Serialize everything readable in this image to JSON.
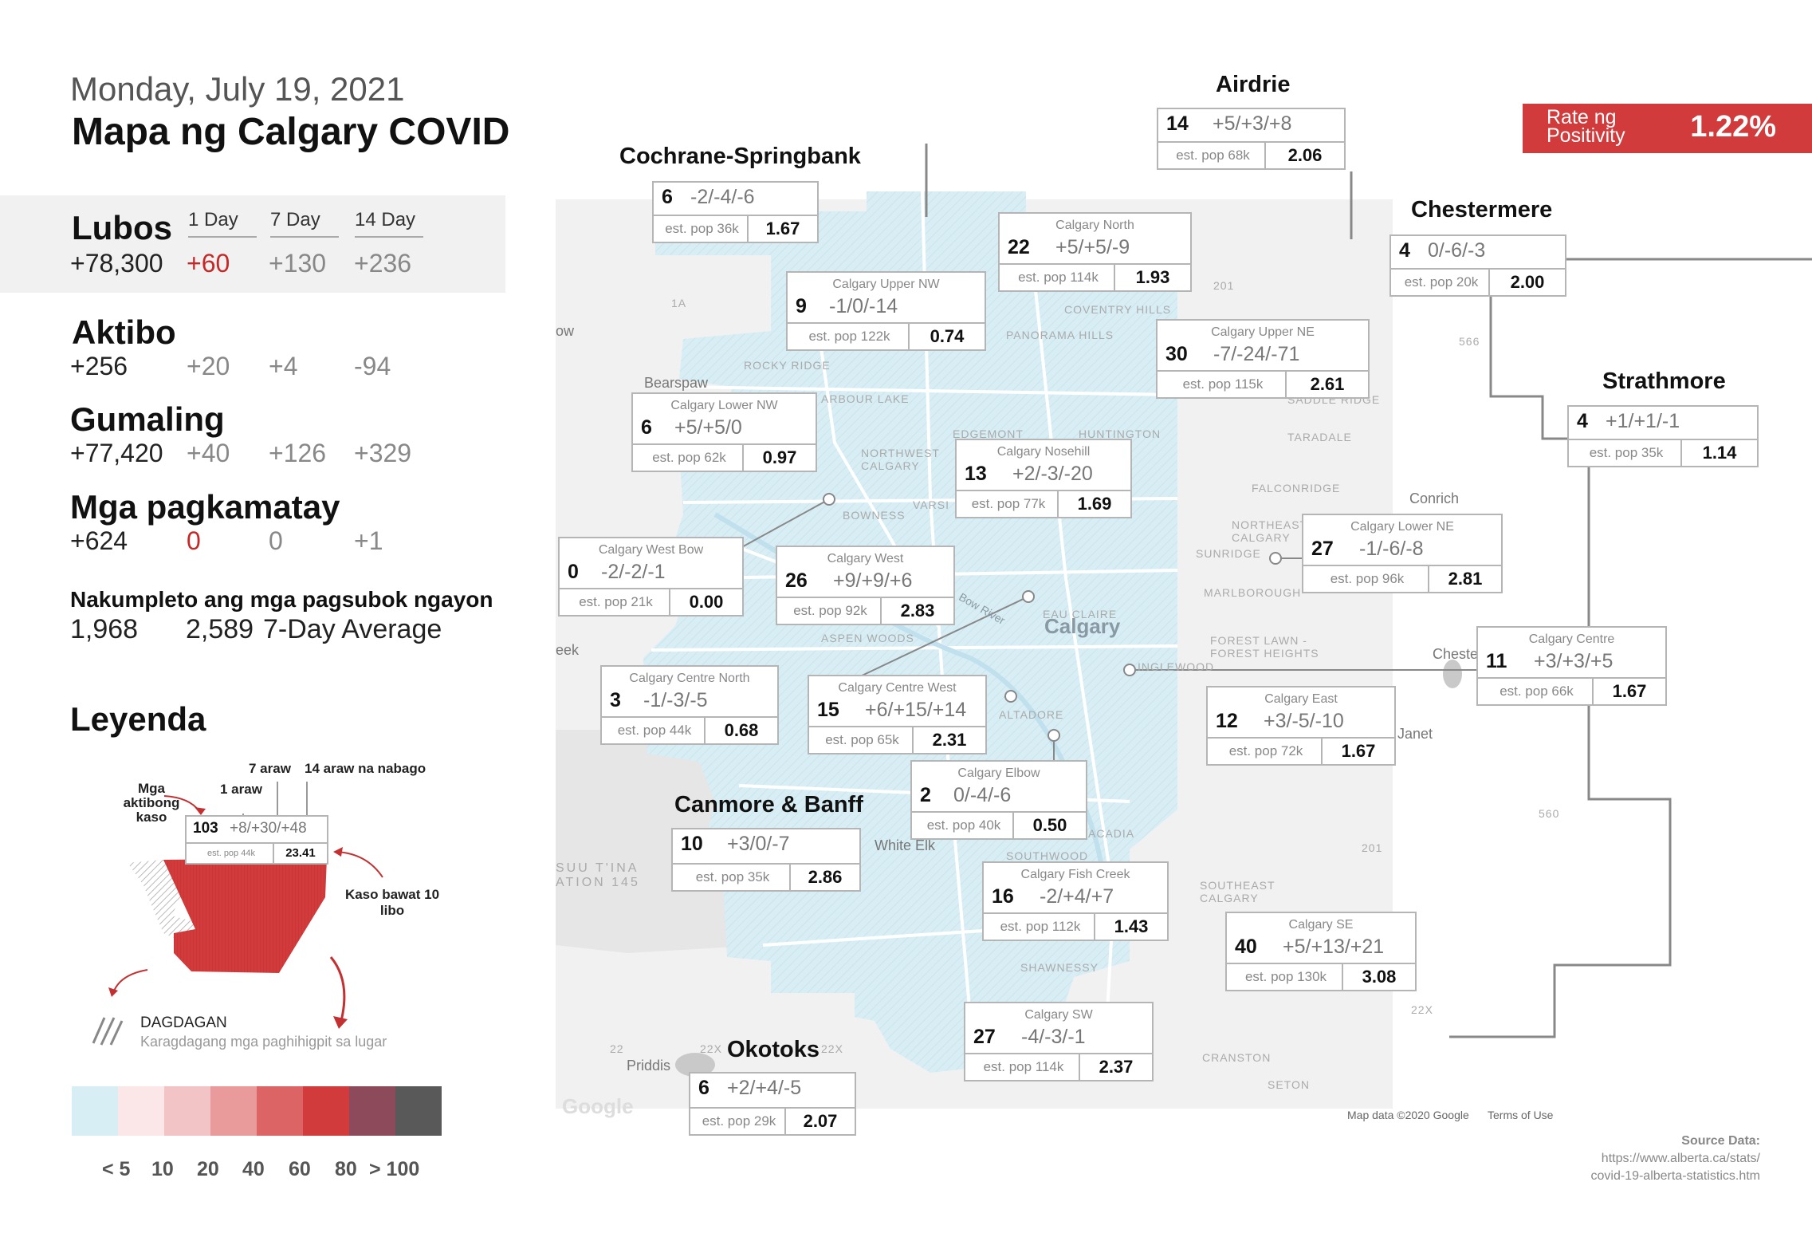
{
  "header": {
    "date": "Monday, July 19, 2021",
    "title": "Mapa ng Calgary COVID"
  },
  "stats": {
    "columns": [
      "1 Day",
      "7 Day",
      "14 Day"
    ],
    "rows": [
      {
        "label": "Lubos",
        "total": "+78,300",
        "d1": "+60",
        "d7": "+130",
        "d14": "+236"
      },
      {
        "label": "Aktibo",
        "total": "+256",
        "d1": "+20",
        "d7": "+4",
        "d14": "-94"
      },
      {
        "label": "Gumaling",
        "total": "+77,420",
        "d1": "+40",
        "d7": "+126",
        "d14": "+329"
      },
      {
        "label": "Mga pagkamatay",
        "total": "+624",
        "d1": "0",
        "d7": "0",
        "d14": "+1"
      }
    ],
    "tests_label": "Nakumpleto ang mga pagsubok ngayon",
    "tests_today": "1,968",
    "tests_avg": "2,589",
    "tests_avg_label": "7-Day Average"
  },
  "legend": {
    "title": "Leyenda",
    "ann_7": "7 araw",
    "ann_14": "14 araw na nabago",
    "ann_1": "1 araw",
    "ann_active": "Mga aktibong kaso",
    "ann_rate": "Kaso bawat 10 libo",
    "sample_cases": "103",
    "sample_change": "+8/+30/+48",
    "sample_pop": "est. pop 44k",
    "sample_rate": "23.41",
    "increase_label": "DAGDAGAN",
    "increase_desc": "Karagdagang mga paghihigpit sa lugar",
    "scale_colors": [
      "#d7eef4",
      "#fbe7e8",
      "#f3c4c5",
      "#e99a9b",
      "#dd6465",
      "#d13b3c",
      "#8c4a5b",
      "#595959"
    ],
    "scale_labels": [
      "< 5",
      "10",
      "20",
      "40",
      "60",
      "80",
      "> 100"
    ]
  },
  "rate": {
    "label": "Rate ng Positivity",
    "value": "1.22%"
  },
  "regions": [
    {
      "title": "Airdrie",
      "cases": "14",
      "change": "+5/+3/+8",
      "pop": "est. pop 68k",
      "rate": "2.06"
    },
    {
      "title": "Cochrane-Springbank",
      "cases": "6",
      "change": "-2/-4/-6",
      "pop": "est. pop 36k",
      "rate": "1.67"
    },
    {
      "title": "Chestermere",
      "cases": "4",
      "change": "0/-6/-3",
      "pop": "est. pop 20k",
      "rate": "2.00"
    },
    {
      "title": "Strathmore",
      "cases": "4",
      "change": "+1/+1/-1",
      "pop": "est. pop 35k",
      "rate": "1.14"
    },
    {
      "title": "Canmore & Banff",
      "cases": "10",
      "change": "+3/0/-7",
      "pop": "est. pop 35k",
      "rate": "2.86"
    },
    {
      "title": "Okotoks",
      "cases": "6",
      "change": "+2/+4/-5",
      "pop": "est. pop 29k",
      "rate": "2.07"
    }
  ],
  "zones": [
    {
      "name": "Calgary North",
      "cases": "22",
      "change": "+5/+5/-9",
      "pop": "est. pop 114k",
      "rate": "1.93"
    },
    {
      "name": "Calgary Upper NW",
      "cases": "9",
      "change": "-1/0/-14",
      "pop": "est. pop 122k",
      "rate": "0.74"
    },
    {
      "name": "Calgary Upper NE",
      "cases": "30",
      "change": "-7/-24/-71",
      "pop": "est. pop 115k",
      "rate": "2.61"
    },
    {
      "name": "Calgary Lower NW",
      "cases": "6",
      "change": "+5/+5/0",
      "pop": "est. pop 62k",
      "rate": "0.97"
    },
    {
      "name": "Calgary Nosehill",
      "cases": "13",
      "change": "+2/-3/-20",
      "pop": "est. pop 77k",
      "rate": "1.69"
    },
    {
      "name": "Calgary West Bow",
      "cases": "0",
      "change": "-2/-2/-1",
      "pop": "est. pop 21k",
      "rate": "0.00"
    },
    {
      "name": "Calgary West",
      "cases": "26",
      "change": "+9/+9/+6",
      "pop": "est. pop 92k",
      "rate": "2.83"
    },
    {
      "name": "Calgary Lower NE",
      "cases": "27",
      "change": "-1/-6/-8",
      "pop": "est. pop 96k",
      "rate": "2.81"
    },
    {
      "name": "Calgary Centre North",
      "cases": "3",
      "change": "-1/-3/-5",
      "pop": "est. pop 44k",
      "rate": "0.68"
    },
    {
      "name": "Calgary Centre West",
      "cases": "15",
      "change": "+6/+15/+14",
      "pop": "est. pop 65k",
      "rate": "2.31"
    },
    {
      "name": "Calgary Centre",
      "cases": "11",
      "change": "+3/+3/+5",
      "pop": "est. pop 66k",
      "rate": "1.67"
    },
    {
      "name": "Calgary East",
      "cases": "12",
      "change": "+3/-5/-10",
      "pop": "est. pop 72k",
      "rate": "1.67"
    },
    {
      "name": "Calgary Elbow",
      "cases": "2",
      "change": "0/-4/-6",
      "pop": "est. pop 40k",
      "rate": "0.50"
    },
    {
      "name": "Calgary Fish Creek",
      "cases": "16",
      "change": "-2/+4/+7",
      "pop": "est. pop 112k",
      "rate": "1.43"
    },
    {
      "name": "Calgary SE",
      "cases": "40",
      "change": "+5/+13/+21",
      "pop": "est. pop 130k",
      "rate": "3.08"
    },
    {
      "name": "Calgary SW",
      "cases": "27",
      "change": "-4/-3/-1",
      "pop": "est. pop 114k",
      "rate": "2.37"
    }
  ],
  "map_labels": {
    "city": "Calgary",
    "conrich": "Conrich",
    "bearspaw": "Bearspaw",
    "white_elk": "White Elk",
    "priddis": "Priddis",
    "janet": "Janet",
    "cheste": "Cheste",
    "eek": "eek",
    "ow": "ow",
    "coventry": "COVENTRY HILLS",
    "panorama": "PANORAMA HILLS",
    "rocky": "ROCKY RIDGE",
    "arbour": "ARBOUR LAKE",
    "edgemont": "EDGEMONT",
    "huntington": "HUNTINGTON",
    "saddle": "SADDLE RIDGE",
    "taradale": "TARADALE",
    "falconridge": "FALCONRIDGE",
    "nwcalgary": "NORTHWEST CALGARY",
    "varsity": "VARSI",
    "bowness": "BOWNESS",
    "necalgary": "NORTHEAST CALGARY",
    "sunridge": "SUNRIDGE",
    "marlborough": "MARLBOROUGH",
    "eauclaire": "EAU CLAIRE",
    "aspen": "ASPEN WOODS",
    "forestlawn": "FOREST LAWN - FOREST HEIGHTS",
    "inglewood": "INGLEWOOD",
    "altadore": "ALTADORE",
    "acadia": "ACADIA",
    "southwood": "SOUTHWOOD",
    "secalgary": "SOUTHEAST CALGARY",
    "shawnessy": "SHAWNESSY",
    "cranston": "CRANSTON",
    "seton": "SETON",
    "tsuut": "SUU T'INA ATION 145",
    "bowriver": "Bow River",
    "r1a": "1A",
    "r201a": "201",
    "r201b": "201",
    "r566": "566",
    "r560": "560",
    "r22x": "22X",
    "r22xb": "22X",
    "r22xc": "22X",
    "r22": "22",
    "google": "Google",
    "mapdata": "Map data ©2020 Google",
    "terms": "Terms of Use"
  },
  "source": {
    "label": "Source Data:",
    "url1": "https://www.alberta.ca/stats/",
    "url2": "covid-19-alberta-statistics.htm"
  }
}
